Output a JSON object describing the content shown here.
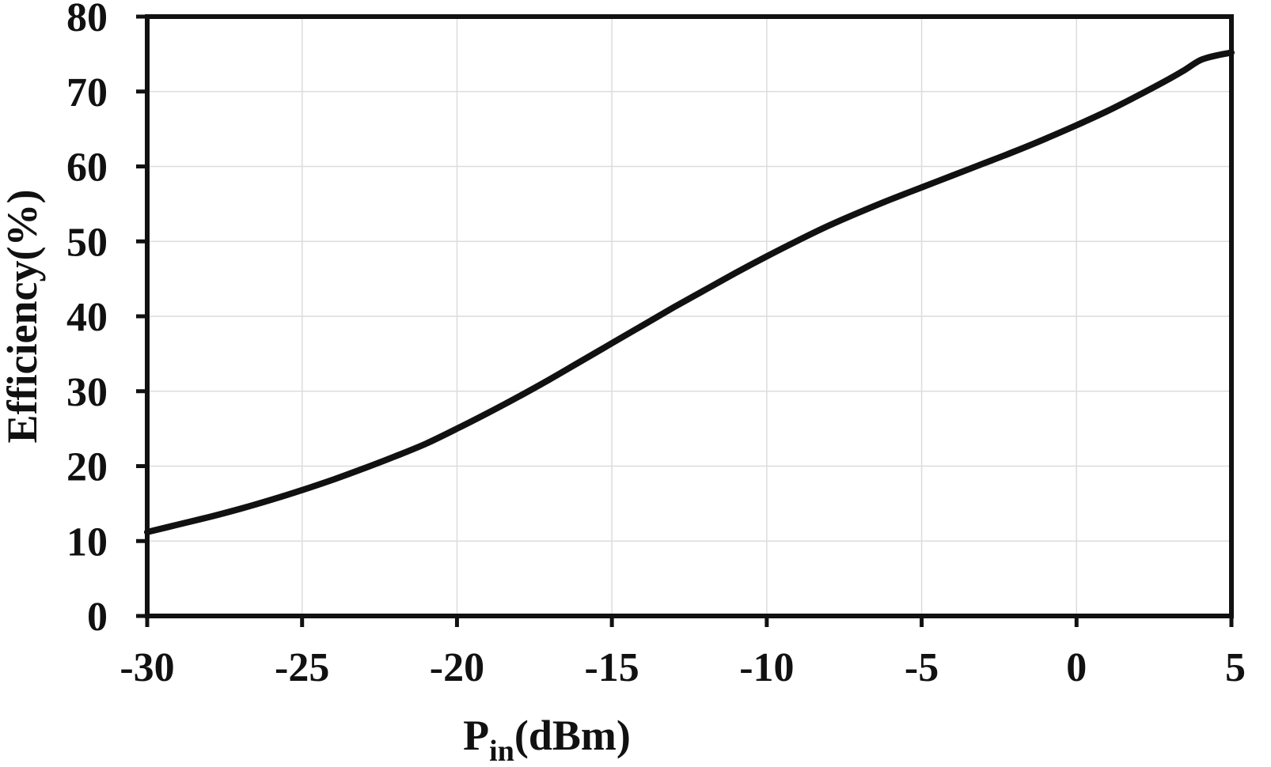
{
  "chart_data": {
    "type": "line",
    "title": "",
    "xlabel": {
      "main": "P",
      "sub": "in",
      "unit": "(dBm)"
    },
    "ylabel": "Efficiency(%)",
    "xlim": [
      -30,
      5
    ],
    "ylim": [
      0,
      80
    ],
    "xticks": [
      "-30",
      "-25",
      "-20",
      "-15",
      "-10",
      "-5",
      "0",
      "5"
    ],
    "yticks": [
      "0",
      "10",
      "20",
      "30",
      "40",
      "50",
      "60",
      "70",
      "80"
    ],
    "grid": true,
    "legend": "none",
    "colors": {
      "line": "#111111",
      "grid": "#dcdcdc",
      "axis": "#111111"
    },
    "series": [
      {
        "x": [
          -30,
          -29,
          -28,
          -27,
          -26,
          -25,
          -24,
          -23,
          -22,
          -21,
          -20,
          -19,
          -18,
          -17,
          -16,
          -15,
          -14,
          -13,
          -12,
          -11,
          -10,
          -9,
          -8,
          -7,
          -6,
          -5,
          -4,
          -3,
          -2,
          -1,
          0,
          1,
          2,
          3,
          3.5,
          4,
          4.5,
          5
        ],
        "y": [
          11.2,
          12.2,
          13.2,
          14.3,
          15.5,
          16.8,
          18.2,
          19.7,
          21.3,
          23.0,
          25.0,
          27.1,
          29.3,
          31.6,
          34.0,
          36.4,
          38.8,
          41.2,
          43.5,
          45.8,
          48.0,
          50.1,
          52.1,
          53.9,
          55.6,
          57.2,
          58.8,
          60.4,
          62.0,
          63.7,
          65.5,
          67.4,
          69.5,
          71.7,
          72.9,
          74.2,
          74.8,
          75.2
        ]
      }
    ]
  }
}
